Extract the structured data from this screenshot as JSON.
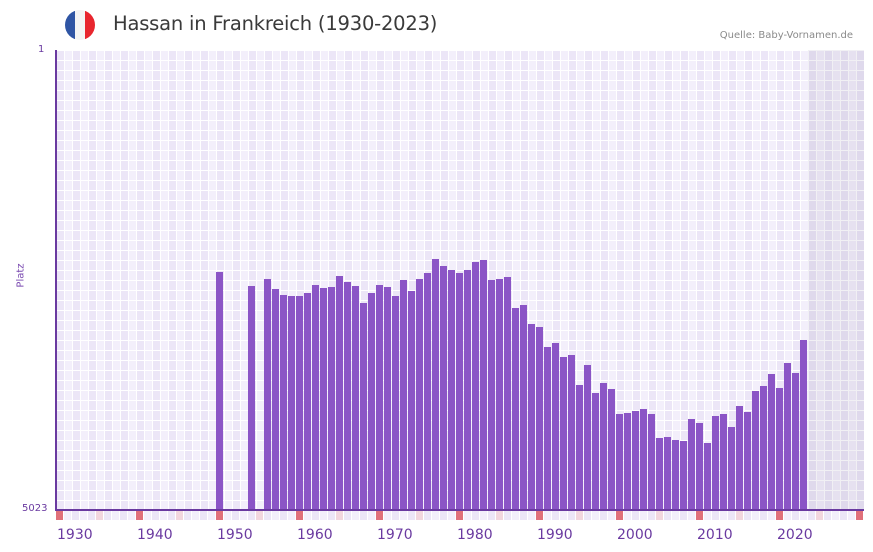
{
  "header": {
    "title": "Hassan in Frankreich (1930-2023)",
    "source": "Quelle: Baby-Vornamen.de",
    "flag_colors": [
      "#2f55a4",
      "#f4f4f4",
      "#e8262e"
    ]
  },
  "colors": {
    "bar": "#8b55c6",
    "axis": "#6a3aa0",
    "decade_marker": "#e0707a",
    "half_decade_marker": "#f2d6de",
    "grid_light": "#f3effb",
    "grid_dark": "#ece6f7"
  },
  "chart_data": {
    "type": "bar",
    "title": "Hassan in Frankreich (1930-2023)",
    "xlabel": "",
    "ylabel": "Platz",
    "y_axis_inverted": true,
    "ylim": [
      1,
      5023
    ],
    "y_tick_labels": [
      "1",
      "5023"
    ],
    "x_range": [
      1930,
      2030
    ],
    "x_tick_labels": [
      "1930",
      "1940",
      "1950",
      "1960",
      "1970",
      "1980",
      "1990",
      "2000",
      "2010",
      "2020"
    ],
    "shaded_future_region": [
      2024,
      2030
    ],
    "grid": true,
    "legend": null,
    "x": [
      1950,
      1954,
      1956,
      1957,
      1958,
      1959,
      1960,
      1961,
      1962,
      1963,
      1964,
      1965,
      1966,
      1967,
      1968,
      1969,
      1970,
      1971,
      1972,
      1973,
      1974,
      1975,
      1976,
      1977,
      1978,
      1979,
      1980,
      1981,
      1982,
      1983,
      1984,
      1985,
      1986,
      1987,
      1988,
      1989,
      1990,
      1991,
      1992,
      1993,
      1994,
      1995,
      1996,
      1997,
      1998,
      1999,
      2000,
      2001,
      2002,
      2003,
      2004,
      2005,
      2006,
      2007,
      2008,
      2009,
      2010,
      2011,
      2012,
      2013,
      2014,
      2015,
      2016,
      2017,
      2018,
      2019,
      2020,
      2021,
      2022,
      2023
    ],
    "values": [
      2424,
      2577,
      2500,
      2609,
      2675,
      2686,
      2686,
      2653,
      2566,
      2599,
      2588,
      2468,
      2533,
      2577,
      2762,
      2653,
      2566,
      2588,
      2686,
      2511,
      2631,
      2500,
      2434,
      2282,
      2358,
      2402,
      2434,
      2402,
      2315,
      2293,
      2511,
      2500,
      2478,
      2817,
      2784,
      2992,
      3024,
      3243,
      3199,
      3352,
      3330,
      3657,
      3439,
      3745,
      3636,
      3701,
      3974,
      3963,
      3941,
      3919,
      3974,
      4236,
      4225,
      4258,
      4269,
      4029,
      4073,
      4291,
      3996,
      3974,
      4116,
      3887,
      3952,
      3723,
      3668,
      3537,
      3690,
      3417,
      3526,
      3166
    ]
  }
}
